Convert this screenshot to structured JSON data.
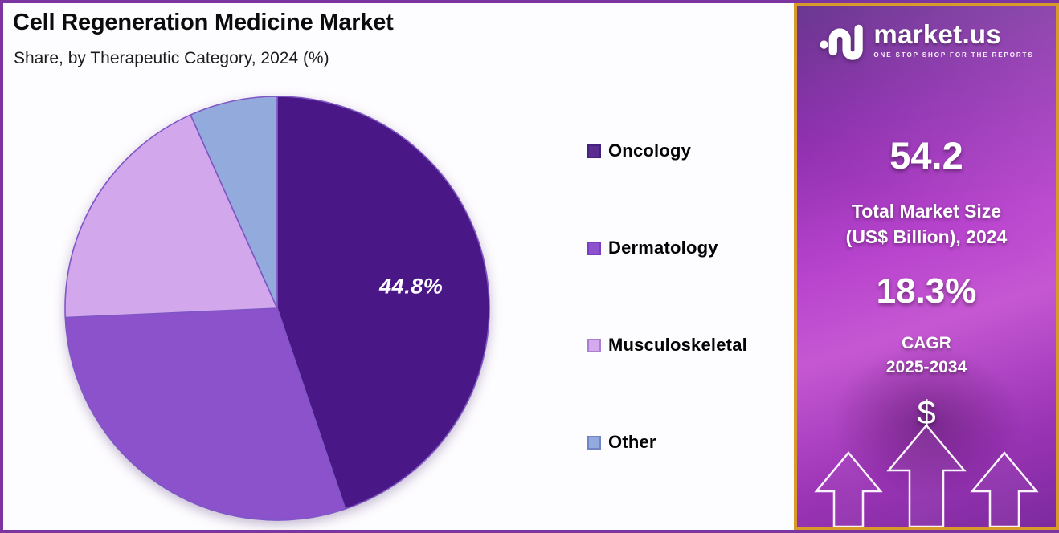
{
  "page": {
    "title": "Cell Regeneration Medicine Market",
    "subtitle": "Share, by Therapeutic Category, 2024 (%)"
  },
  "chart_data": {
    "type": "pie",
    "title": "Cell Regeneration Medicine Market",
    "subtitle": "Share, by Therapeutic Category, 2024 (%)",
    "unit": "%",
    "year": "2024",
    "categories": [
      "Oncology",
      "Dermatology",
      "Musculoskeletal",
      "Other"
    ],
    "values": [
      44.8,
      29.5,
      19.0,
      6.7
    ],
    "colors": [
      "#4a1886",
      "#8c52cc",
      "#d2a7ec",
      "#93aadc"
    ],
    "slice_border_color": "#7e57c5",
    "start_angle_deg": 0,
    "direction": "clockwise",
    "labeled_slice": {
      "category": "Oncology",
      "text": "44.8%"
    },
    "legend_position": "right"
  },
  "legend": {
    "items": [
      {
        "label": "Oncology",
        "color": "#5b2d90",
        "border": "#44217a"
      },
      {
        "label": "Dermatology",
        "color": "#8e52ce",
        "border": "#7a3fbf"
      },
      {
        "label": "Musculoskeletal",
        "color": "#d5a9ee",
        "border": "#a97fd0"
      },
      {
        "label": "Other",
        "color": "#93aade",
        "border": "#7482c6"
      }
    ]
  },
  "sidebar": {
    "brand": {
      "name": "market.us",
      "tagline": "ONE STOP SHOP FOR THE REPORTS"
    },
    "market_size": {
      "value": "54.2",
      "label_line1": "Total Market Size",
      "label_line2": "(US$ Billion), 2024"
    },
    "cagr": {
      "value": "18.3%",
      "label_line1": "CAGR",
      "label_line2": "2025-2034"
    },
    "dollar_symbol": "$",
    "accent_border_color": "#d89a28"
  },
  "frame": {
    "border_color": "#7c35a0"
  }
}
